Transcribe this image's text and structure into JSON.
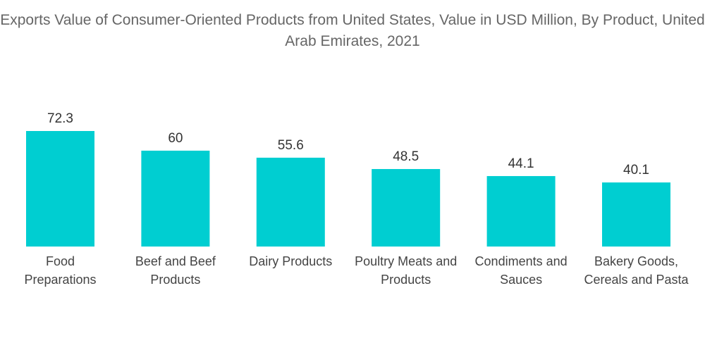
{
  "chart_data": {
    "type": "bar",
    "title": "Exports Value of Consumer-Oriented Products from United States, Value in USD Million, By Product, United Arab Emirates, 2021",
    "categories": [
      [
        "Food",
        "Preparations"
      ],
      [
        "Beef and Beef",
        "Products"
      ],
      [
        "Dairy Products"
      ],
      [
        "Poultry Meats and",
        "Products"
      ],
      [
        "Condiments and",
        "Sauces"
      ],
      [
        "Bakery Goods,",
        "Cereals and Pasta"
      ]
    ],
    "values": [
      72.3,
      60,
      55.6,
      48.5,
      44.1,
      40.1
    ],
    "value_labels": [
      "72.3",
      "60",
      "55.6",
      "48.5",
      "44.1",
      "40.1"
    ],
    "xlabel": "",
    "ylabel": "",
    "grid": false,
    "legend": "none",
    "bar_color": "#00CED1"
  }
}
